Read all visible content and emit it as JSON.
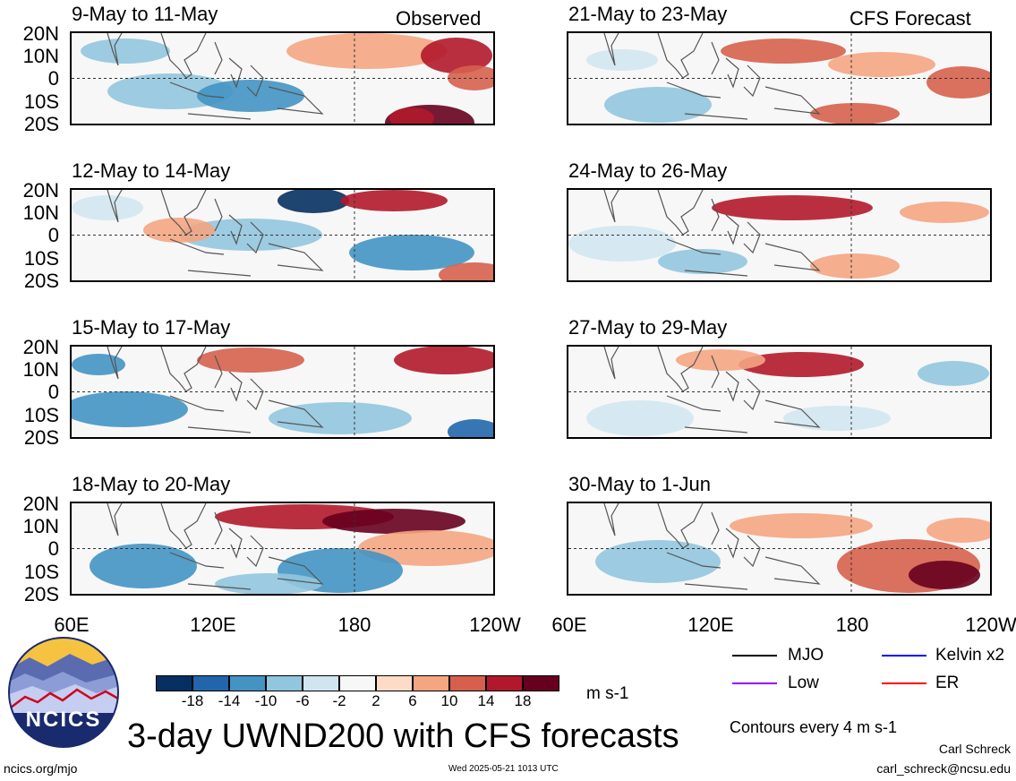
{
  "observed_label": "Observed",
  "forecast_label": "CFS Forecast",
  "panels": {
    "left": [
      "9-May to 11-May",
      "12-May to 14-May",
      "15-May to 17-May",
      "18-May to 20-May"
    ],
    "right": [
      "21-May to 23-May",
      "24-May to 26-May",
      "27-May to 29-May",
      "30-May to 1-Jun"
    ]
  },
  "lat_labels": [
    "20N",
    "10N",
    "0",
    "10S",
    "20S"
  ],
  "lon_labels": [
    "60E",
    "120E",
    "180",
    "120W"
  ],
  "colorbar": {
    "labels": [
      "-18",
      "-14",
      "-10",
      "-6",
      "-2",
      "2",
      "6",
      "10",
      "14",
      "18"
    ],
    "colors": [
      "#053061",
      "#2166ac",
      "#4393c3",
      "#92c5de",
      "#d1e5f0",
      "#f7f7f7",
      "#fddbc7",
      "#f4a582",
      "#d6604d",
      "#b2182b",
      "#67001f"
    ],
    "units": "m s-1"
  },
  "legend": {
    "mjo": "MJO",
    "kelvin": "Kelvin x2",
    "low": "Low",
    "er": "ER",
    "mjo_color": "#000000",
    "kelvin_color": "#0000ff",
    "low_color": "#9900ff",
    "er_color": "#ff0000"
  },
  "contour_note": "Contours every 4 m s-1",
  "main_title": "3-day UWND200 with CFS forecasts",
  "logo_text": "NCICS",
  "footer": {
    "url": "ncics.org/mjo",
    "timestamp": "Wed 2025-05-21 1013 UTC",
    "author": "Carl Schreck",
    "email": "carl_schreck@ncsu.edu"
  }
}
